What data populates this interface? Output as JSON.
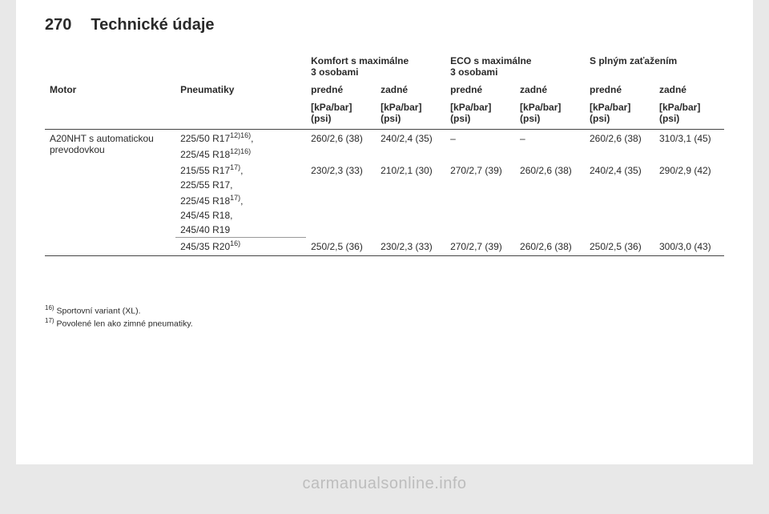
{
  "header": {
    "page_number": "270",
    "title": "Technické údaje"
  },
  "table": {
    "group_headers": {
      "comfort": "Komfort s maximálne 3 osobami",
      "eco": "ECO s maximálne 3 osobami",
      "full": "S plným zaťažením"
    },
    "col_headers": {
      "motor": "Motor",
      "tyres": "Pneumatiky",
      "front": "predné",
      "rear": "zadné"
    },
    "unit_header": "[kPa/bar] (psi)",
    "rows": [
      {
        "motor": "A20NHT s automatic­kou prevodovkou",
        "tyres": [
          "225/50 R17<sup>12)16)</sup>,",
          "225/45 R18<sup>12)16)</sup>"
        ],
        "vals": [
          "260/2,6 (38)",
          "240/2,4 (35)",
          "–",
          "–",
          "260/2,6 (38)",
          "310/3,1 (45)"
        ],
        "sep": "none"
      },
      {
        "motor": "",
        "tyres": [
          "215/55 R17<sup>17)</sup>,",
          "225/55 R17,",
          "225/45 R18<sup>17)</sup>,",
          "245/45 R18,",
          "245/40 R19"
        ],
        "vals": [
          "230/2,3 (33)",
          "210/2,1 (30)",
          "270/2,7 (39)",
          "260/2,6 (38)",
          "240/2,4 (35)",
          "290/2,9 (42)"
        ],
        "sep": "thin"
      },
      {
        "motor": "",
        "tyres": [
          "245/35 R20<sup>16)</sup>"
        ],
        "vals": [
          "250/2,5 (36)",
          "230/2,3 (33)",
          "270/2,7 (39)",
          "260/2,6 (38)",
          "250/2,5 (36)",
          "300/3,0 (43)"
        ],
        "sep": "bold"
      }
    ]
  },
  "footnotes": [
    {
      "num": "16)",
      "text": "Sportovní variant (XL)."
    },
    {
      "num": "17)",
      "text": "Povolené len ako zimné pneumatiky."
    }
  ],
  "watermark": "carmanualsonline.info"
}
